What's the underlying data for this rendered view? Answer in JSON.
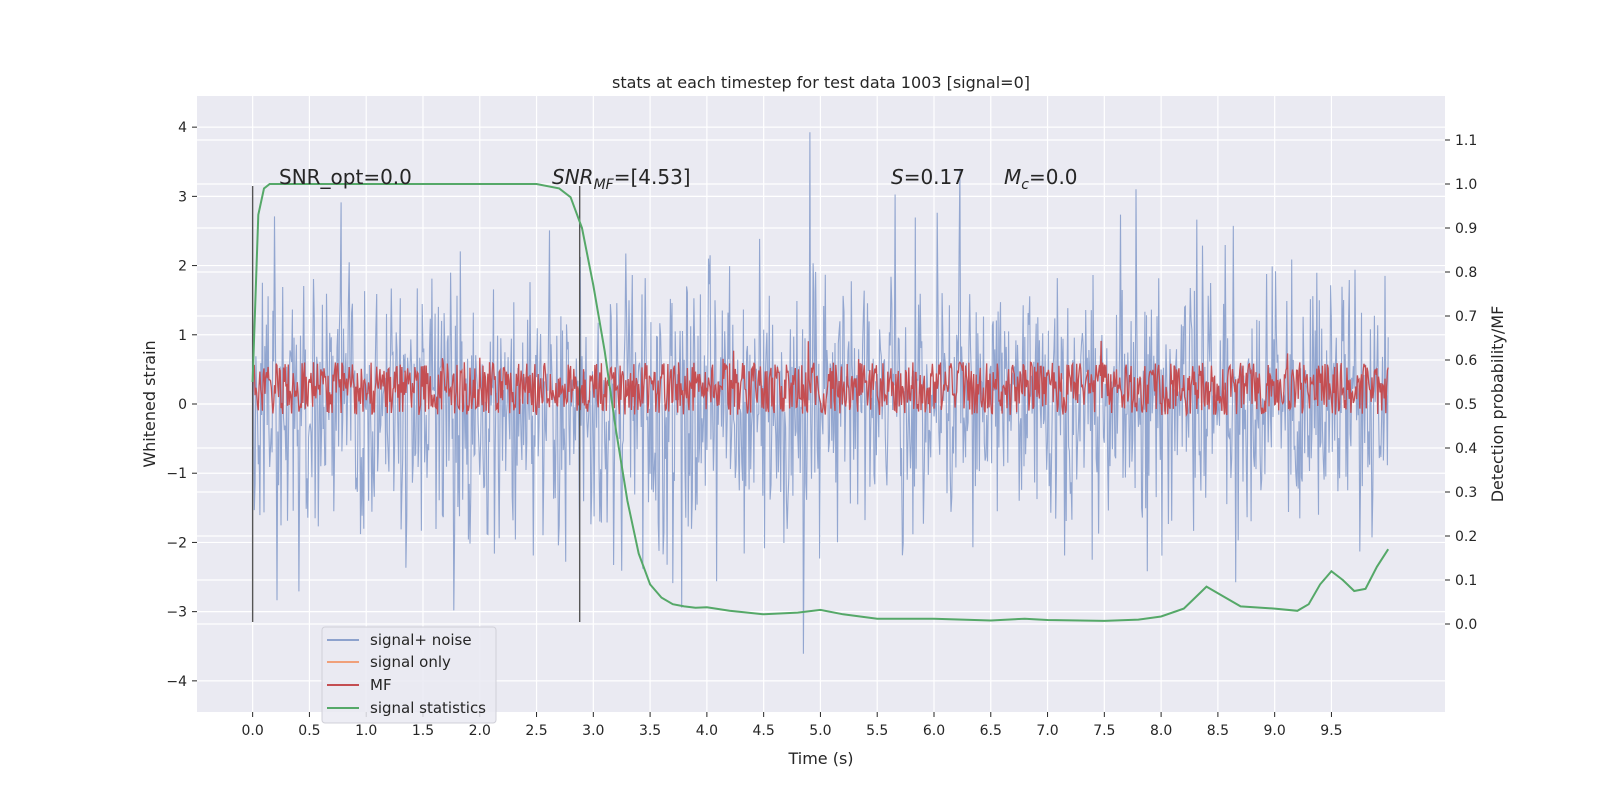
{
  "chart_data": {
    "type": "line",
    "title": "stats at each timestep for test data 1003 [signal=0]",
    "xlabel": "Time (s)",
    "ylabel": "Whitened strain",
    "y2label": "Detection probability/MF",
    "xlim": [
      -0.49,
      10.5
    ],
    "ylim": [
      -4.45,
      4.45
    ],
    "y2lim": [
      -0.2,
      1.2
    ],
    "xticks": [
      "0.0",
      "0.5",
      "1.0",
      "1.5",
      "2.0",
      "2.5",
      "3.0",
      "3.5",
      "4.0",
      "4.5",
      "5.0",
      "5.5",
      "6.0",
      "6.5",
      "7.0",
      "7.5",
      "8.0",
      "8.5",
      "9.0",
      "9.5"
    ],
    "yticks": [
      "−4",
      "−3",
      "−2",
      "−1",
      "0",
      "1",
      "2",
      "3",
      "4"
    ],
    "y2ticks": [
      "0.0",
      "0.1",
      "0.2",
      "0.3",
      "0.4",
      "0.5",
      "0.6",
      "0.7",
      "0.8",
      "0.9",
      "1.0",
      "1.1"
    ],
    "grid": true,
    "legend_position": "lower-left",
    "annotations": {
      "snr_opt": "SNR_opt=0.0",
      "snr_mf_main": "SNR",
      "snr_mf_sub": "MF",
      "snr_mf_value": "=[4.53]",
      "s_main": "S",
      "s_value": "=0.17",
      "mc_main": "M",
      "mc_sub": "c",
      "mc_value": "=0.0"
    },
    "vlines": [
      0.0,
      2.88
    ],
    "vline_range": [
      -3.15,
      3.15
    ],
    "series": [
      {
        "name": "signal+ noise",
        "color": "#8da2cd",
        "axis": "left",
        "description": "whitened strain noise, roughly uniform amplitude ±2.5 with spikes to ±4",
        "x_range": [
          0.0,
          10.0
        ],
        "envelope": 2.6
      },
      {
        "name": "signal only",
        "color": "#f0a07a",
        "axis": "left",
        "values": []
      },
      {
        "name": "MF",
        "color": "#c44e52",
        "axis": "right",
        "description": "matched filter output fluctuating around 0.53 on the right axis",
        "x_range": [
          0.0,
          10.0
        ],
        "center": 0.535,
        "spread": 0.06
      },
      {
        "name": "signal statistics",
        "color": "#55a868",
        "axis": "right",
        "x": [
          0.0,
          0.05,
          0.1,
          0.15,
          0.2,
          0.5,
          1.0,
          1.5,
          2.0,
          2.5,
          2.7,
          2.8,
          2.9,
          3.0,
          3.1,
          3.2,
          3.3,
          3.4,
          3.5,
          3.6,
          3.7,
          3.8,
          3.9,
          4.0,
          4.2,
          4.5,
          4.8,
          5.0,
          5.2,
          5.5,
          6.0,
          6.5,
          6.8,
          7.0,
          7.5,
          7.8,
          8.0,
          8.2,
          8.3,
          8.4,
          8.5,
          8.7,
          9.0,
          9.2,
          9.3,
          9.4,
          9.5,
          9.6,
          9.7,
          9.8,
          9.9,
          10.0
        ],
        "values": [
          0.55,
          0.93,
          0.99,
          1.0,
          1.0,
          1.0,
          1.0,
          1.0,
          1.0,
          1.0,
          0.99,
          0.97,
          0.9,
          0.77,
          0.62,
          0.44,
          0.28,
          0.16,
          0.09,
          0.06,
          0.045,
          0.04,
          0.037,
          0.038,
          0.03,
          0.022,
          0.026,
          0.032,
          0.022,
          0.012,
          0.012,
          0.008,
          0.012,
          0.009,
          0.007,
          0.01,
          0.017,
          0.035,
          0.06,
          0.085,
          0.07,
          0.04,
          0.035,
          0.03,
          0.045,
          0.09,
          0.12,
          0.1,
          0.075,
          0.08,
          0.13,
          0.17
        ]
      }
    ]
  }
}
